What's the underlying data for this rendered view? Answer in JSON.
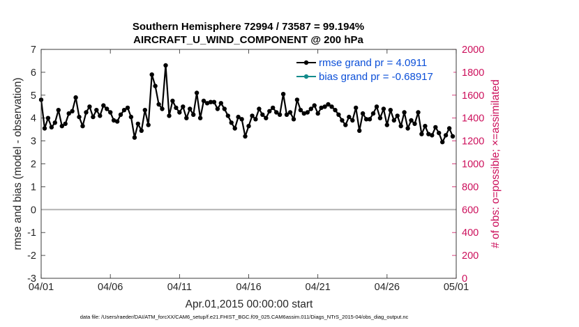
{
  "chart_data": {
    "type": "line",
    "title": "Southern Hemisphere 72994 / 73587 = 99.194%",
    "subtitle": "AIRCRAFT_U_WIND_COMPONENT @ 200 hPa",
    "xlabel": "Apr.01,2015 00:00:00 start",
    "ylabel": "rmse and bias (model - observation)",
    "y2label": "# of obs: o=possible; ×=assimilated",
    "footnote": "data file: /Users/raeder/DAI/ATM_forcXX/CAM6_setup/f.e21.FHIST_BGC.f09_025.CAM6assim.011/Diags_NTrS_2015-04/obs_diag_output.nc",
    "xlim": [
      0,
      30
    ],
    "ylim": [
      -3,
      7
    ],
    "y2lim": [
      0,
      2000
    ],
    "x_ticks": [
      0,
      5,
      10,
      15,
      20,
      25,
      30
    ],
    "x_tick_labels": [
      "04/01",
      "04/06",
      "04/11",
      "04/16",
      "04/21",
      "04/26",
      "05/01"
    ],
    "y_ticks": [
      -3,
      -2,
      -1,
      0,
      1,
      2,
      3,
      4,
      5,
      6,
      7
    ],
    "y_tick_labels": [
      "-3",
      "-2",
      "-1",
      "0",
      "1",
      "2",
      "3",
      "4",
      "5",
      "6",
      "7"
    ],
    "y2_ticks": [
      0,
      200,
      400,
      600,
      800,
      1000,
      1200,
      1400,
      1600,
      1800,
      2000
    ],
    "y2_tick_labels": [
      "0",
      "200",
      "400",
      "600",
      "800",
      "1000",
      "1200",
      "1400",
      "1600",
      "1800",
      "2000"
    ],
    "zero_line": 0,
    "colors": {
      "rmse": "#000000",
      "bias": "#138b8b",
      "obs": "#cc0f5b",
      "legend_text": "#0b4fd8",
      "zero": "#b3b3b3"
    },
    "legend_location": "top-right",
    "series": [
      {
        "name": "rmse",
        "label": "rmse grand pr = 4.0911",
        "axis": "left",
        "x": [
          0.0,
          0.25,
          0.5,
          0.75,
          1.0,
          1.25,
          1.5,
          1.75,
          2.0,
          2.25,
          2.5,
          2.75,
          3.0,
          3.25,
          3.5,
          3.75,
          4.0,
          4.25,
          4.5,
          4.75,
          5.0,
          5.25,
          5.5,
          5.75,
          6.0,
          6.25,
          6.5,
          6.75,
          7.0,
          7.25,
          7.5,
          7.75,
          8.0,
          8.25,
          8.5,
          8.75,
          9.0,
          9.25,
          9.5,
          9.75,
          10.0,
          10.25,
          10.5,
          10.75,
          11.0,
          11.25,
          11.5,
          11.75,
          12.0,
          12.25,
          12.5,
          12.75,
          13.0,
          13.25,
          13.5,
          13.75,
          14.0,
          14.25,
          14.5,
          14.75,
          15.0,
          15.25,
          15.5,
          15.75,
          16.0,
          16.25,
          16.5,
          16.75,
          17.0,
          17.25,
          17.5,
          17.75,
          18.0,
          18.25,
          18.5,
          18.75,
          19.0,
          19.25,
          19.5,
          19.75,
          20.0,
          20.25,
          20.5,
          20.75,
          21.0,
          21.25,
          21.5,
          21.75,
          22.0,
          22.25,
          22.5,
          22.75,
          23.0,
          23.25,
          23.5,
          23.75,
          24.0,
          24.25,
          24.5,
          24.75,
          25.0,
          25.25,
          25.5,
          25.75,
          26.0,
          26.25,
          26.5,
          26.75,
          27.0,
          27.25,
          27.5,
          27.75,
          28.0,
          28.25,
          28.5,
          28.75,
          29.0,
          29.25,
          29.5,
          29.75
        ],
        "y": [
          4.8,
          3.55,
          4.0,
          3.6,
          3.8,
          4.35,
          3.65,
          3.75,
          4.2,
          4.3,
          4.9,
          4.05,
          3.65,
          4.25,
          4.5,
          4.05,
          4.35,
          4.1,
          4.55,
          4.4,
          4.25,
          3.9,
          3.85,
          4.15,
          4.35,
          4.45,
          4.05,
          3.15,
          3.75,
          3.45,
          4.35,
          3.7,
          5.9,
          5.4,
          4.6,
          4.4,
          6.3,
          4.1,
          4.75,
          4.45,
          4.25,
          4.5,
          4.0,
          4.4,
          4.15,
          5.1,
          4.0,
          4.75,
          4.65,
          4.7,
          4.7,
          4.4,
          4.65,
          4.4,
          4.1,
          3.8,
          3.55,
          4.05,
          3.95,
          3.2,
          3.65,
          4.1,
          3.95,
          4.4,
          4.15,
          4.0,
          4.3,
          4.45,
          4.25,
          4.15,
          5.05,
          4.15,
          4.25,
          3.95,
          4.8,
          4.35,
          4.2,
          4.25,
          4.4,
          4.55,
          4.2,
          4.45,
          4.5,
          4.6,
          4.5,
          4.35,
          4.15,
          3.9,
          3.7,
          4.05,
          3.9,
          4.45,
          3.45,
          4.2,
          3.95,
          3.95,
          4.2,
          4.5,
          4.0,
          4.4,
          3.7,
          4.35,
          3.9,
          4.1,
          3.65,
          4.25,
          3.55,
          3.9,
          3.75,
          4.25,
          3.3,
          3.65,
          3.3,
          3.25,
          3.6,
          3.35,
          2.95,
          3.25,
          3.55,
          3.2
        ],
        "y_tail": []
      }
    ]
  },
  "legend": {
    "rmse": "rmse grand pr = 4.0911",
    "bias": "bias grand pr = -0.68917"
  }
}
